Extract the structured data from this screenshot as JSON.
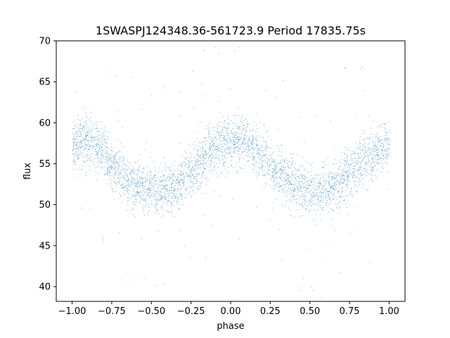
{
  "chart_data": {
    "type": "scatter",
    "title": "1SWASPJ124348.36-561723.9 Period 17835.75s",
    "xlabel": "phase",
    "ylabel": "flux",
    "xlim": [
      -1.1,
      1.1
    ],
    "ylim": [
      38.2,
      70
    ],
    "xticks": [
      -1.0,
      -0.75,
      -0.5,
      -0.25,
      0.0,
      0.25,
      0.5,
      0.75,
      1.0
    ],
    "xtick_labels": [
      "−1.00",
      "−0.75",
      "−0.50",
      "−0.25",
      "0.00",
      "0.25",
      "0.50",
      "0.75",
      "1.00"
    ],
    "yticks": [
      40,
      45,
      50,
      55,
      60,
      65,
      70
    ],
    "ytick_labels": [
      "40",
      "45",
      "50",
      "55",
      "60",
      "65",
      "70"
    ],
    "grid": false,
    "legend": "none",
    "marker_color": "#1f77b4",
    "series": [
      {
        "x": [
          -1.0,
          -0.95,
          -0.9,
          -0.85,
          -0.8,
          -0.75,
          -0.7,
          -0.65,
          -0.6,
          -0.55,
          -0.5,
          -0.45,
          -0.4,
          -0.35,
          -0.3,
          -0.25,
          -0.2,
          -0.15,
          -0.1,
          -0.05,
          0.0,
          0.05,
          0.1,
          0.15,
          0.2,
          0.25,
          0.3,
          0.35,
          0.4,
          0.45,
          0.5,
          0.55,
          0.6,
          0.65,
          0.7,
          0.75,
          0.8,
          0.85,
          0.9,
          0.95,
          1.0
        ],
        "y": [
          57.0,
          57.8,
          57.8,
          57.2,
          56.2,
          55.0,
          54.0,
          53.2,
          52.5,
          52.0,
          51.7,
          51.6,
          51.8,
          52.2,
          53.0,
          54.0,
          55.0,
          56.0,
          57.0,
          57.5,
          57.8,
          57.8,
          57.5,
          56.8,
          55.8,
          54.8,
          54.0,
          53.2,
          52.5,
          52.0,
          51.7,
          51.6,
          51.8,
          52.2,
          53.0,
          54.0,
          54.8,
          55.5,
          56.2,
          56.8,
          57.2
        ]
      }
    ],
    "scatter_band_halfwidth": 3.0
  }
}
